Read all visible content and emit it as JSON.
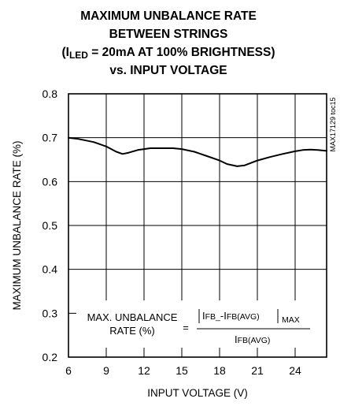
{
  "chart_data": {
    "type": "line",
    "title": {
      "line1": "MAXIMUM UNBALANCE RATE",
      "line2": "BETWEEN STRINGS",
      "line3_open": "(I",
      "line3_sub": "LED",
      "line3_rest": " = 20mA AT 100% BRIGHTNESS)",
      "line4": "vs. INPUT VOLTAGE"
    },
    "xlabel": "INPUT VOLTAGE (V)",
    "ylabel": "MAXIMUM UNBALANCE RATE (%)",
    "side_label": "MAX17129 toc15",
    "xlim": [
      6,
      26.5
    ],
    "ylim": [
      0.2,
      0.8
    ],
    "xticks": [
      6,
      9,
      12,
      15,
      18,
      21,
      24
    ],
    "xtick_labels": [
      "6",
      "9",
      "12",
      "15",
      "18",
      "21",
      "24"
    ],
    "yticks": [
      0.2,
      0.3,
      0.4,
      0.5,
      0.6,
      0.7,
      0.8
    ],
    "ytick_labels": [
      "0.2",
      "0.3",
      "0.4",
      "0.5",
      "0.6",
      "0.7",
      "0.8"
    ],
    "grid": true,
    "series": [
      {
        "x": [
          6.0,
          6.8,
          8.0,
          9.0,
          9.8,
          10.3,
          10.8,
          11.5,
          12.5,
          13.5,
          14.3,
          15.0,
          16.0,
          17.0,
          18.0,
          18.6,
          19.4,
          20.0,
          21.0,
          22.0,
          23.0,
          24.0,
          24.6,
          25.2,
          25.8,
          26.5
        ],
        "y": [
          0.7,
          0.697,
          0.69,
          0.68,
          0.668,
          0.663,
          0.666,
          0.672,
          0.676,
          0.676,
          0.676,
          0.674,
          0.668,
          0.658,
          0.648,
          0.64,
          0.635,
          0.637,
          0.648,
          0.656,
          0.663,
          0.669,
          0.672,
          0.673,
          0.672,
          0.67
        ]
      }
    ],
    "annotation": {
      "lhs_line1": "MAX. UNBALANCE",
      "lhs_line2": "RATE (%)",
      "equals": "=",
      "num_I1": "I",
      "num_sub1": "FB_",
      "num_minus": "-I",
      "num_sub2": "FB(AVG)",
      "num_max": "MAX",
      "den_I": "I",
      "den_sub": "FB(AVG)"
    }
  }
}
